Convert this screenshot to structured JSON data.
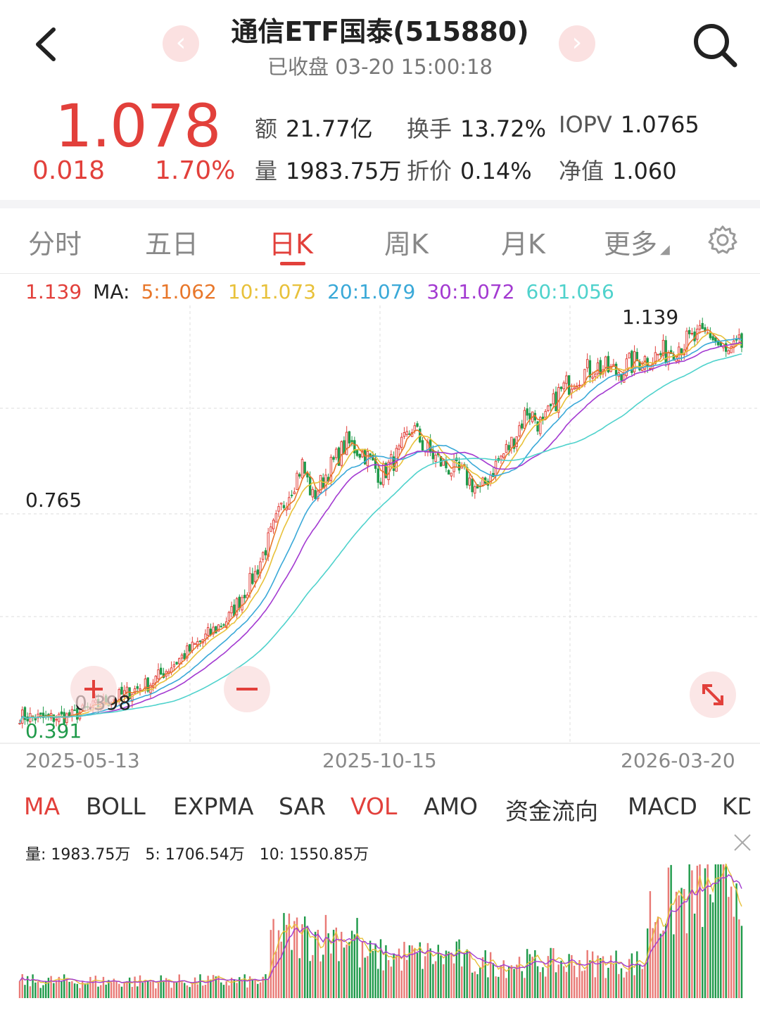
{
  "header": {
    "title": "通信ETF国泰(515880)",
    "status": "已收盘 03-20 15:00:18"
  },
  "quote": {
    "price": "1.078",
    "change": "0.018",
    "change_pct": "1.70%",
    "stats": [
      {
        "label": "额",
        "value": "21.77亿"
      },
      {
        "label": "换手",
        "value": "13.72%"
      },
      {
        "label": "IOPV",
        "value": "1.0765"
      },
      {
        "label": "量",
        "value": "1983.75万"
      },
      {
        "label": "折价",
        "value": "0.14%"
      },
      {
        "label": "净值",
        "value": "1.060"
      }
    ]
  },
  "tabs": [
    "分时",
    "五日",
    "日K",
    "周K",
    "月K",
    "更多"
  ],
  "active_tab": "日K",
  "ma_legend": {
    "price": "1.139",
    "label": "MA:",
    "items": [
      {
        "text": "5:1.062",
        "color": "#e8772a"
      },
      {
        "text": "10:1.073",
        "color": "#e8c13a"
      },
      {
        "text": "20:1.079",
        "color": "#3aa9d8"
      },
      {
        "text": "30:1.072",
        "color": "#a33ad1"
      },
      {
        "text": "60:1.056",
        "color": "#4fd2cc"
      }
    ]
  },
  "price_axis": {
    "high_label": "1.139",
    "mid_label": "0.765",
    "low_label_black": "0.398",
    "low_label_green": "0.391"
  },
  "date_axis": [
    "2025-05-13",
    "2025-10-15",
    "2026-03-20"
  ],
  "indicator_tabs": [
    "MA",
    "BOLL",
    "EXPMA",
    "SAR",
    "VOL",
    "AMO",
    "资金流向",
    "MACD",
    "KD"
  ],
  "active_indicators": [
    "MA",
    "VOL"
  ],
  "volume_legend": {
    "vol": "量:  1983.75万",
    "ma5": "5:  1706.54万",
    "ma10": "10:  1550.85万"
  },
  "colors": {
    "up": "#e2403b",
    "down": "#1f9a4a",
    "accent": "#e2403b"
  },
  "chart_data": {
    "type": "candlestick",
    "x_range": [
      "2025-05-13",
      "2026-03-20"
    ],
    "y_range": [
      0.391,
      1.139
    ],
    "trend_points": [
      [
        0,
        0.4
      ],
      [
        10,
        0.395
      ],
      [
        20,
        0.4
      ],
      [
        30,
        0.42
      ],
      [
        40,
        0.44
      ],
      [
        50,
        0.46
      ],
      [
        60,
        0.5
      ],
      [
        70,
        0.54
      ],
      [
        80,
        0.58
      ],
      [
        90,
        0.66
      ],
      [
        100,
        0.78
      ],
      [
        108,
        0.86
      ],
      [
        112,
        0.8
      ],
      [
        118,
        0.85
      ],
      [
        125,
        0.9
      ],
      [
        132,
        0.88
      ],
      [
        138,
        0.84
      ],
      [
        145,
        0.88
      ],
      [
        150,
        0.93
      ],
      [
        155,
        0.89
      ],
      [
        162,
        0.86
      ],
      [
        170,
        0.84
      ],
      [
        176,
        0.81
      ],
      [
        182,
        0.86
      ],
      [
        188,
        0.9
      ],
      [
        194,
        0.96
      ],
      [
        200,
        0.93
      ],
      [
        206,
        0.99
      ],
      [
        212,
        1.02
      ],
      [
        220,
        1.04
      ],
      [
        228,
        1.03
      ],
      [
        236,
        1.05
      ],
      [
        244,
        1.06
      ],
      [
        252,
        1.08
      ],
      [
        258,
        1.09
      ],
      [
        264,
        1.1
      ],
      [
        270,
        1.06
      ],
      [
        276,
        1.078
      ]
    ]
  }
}
